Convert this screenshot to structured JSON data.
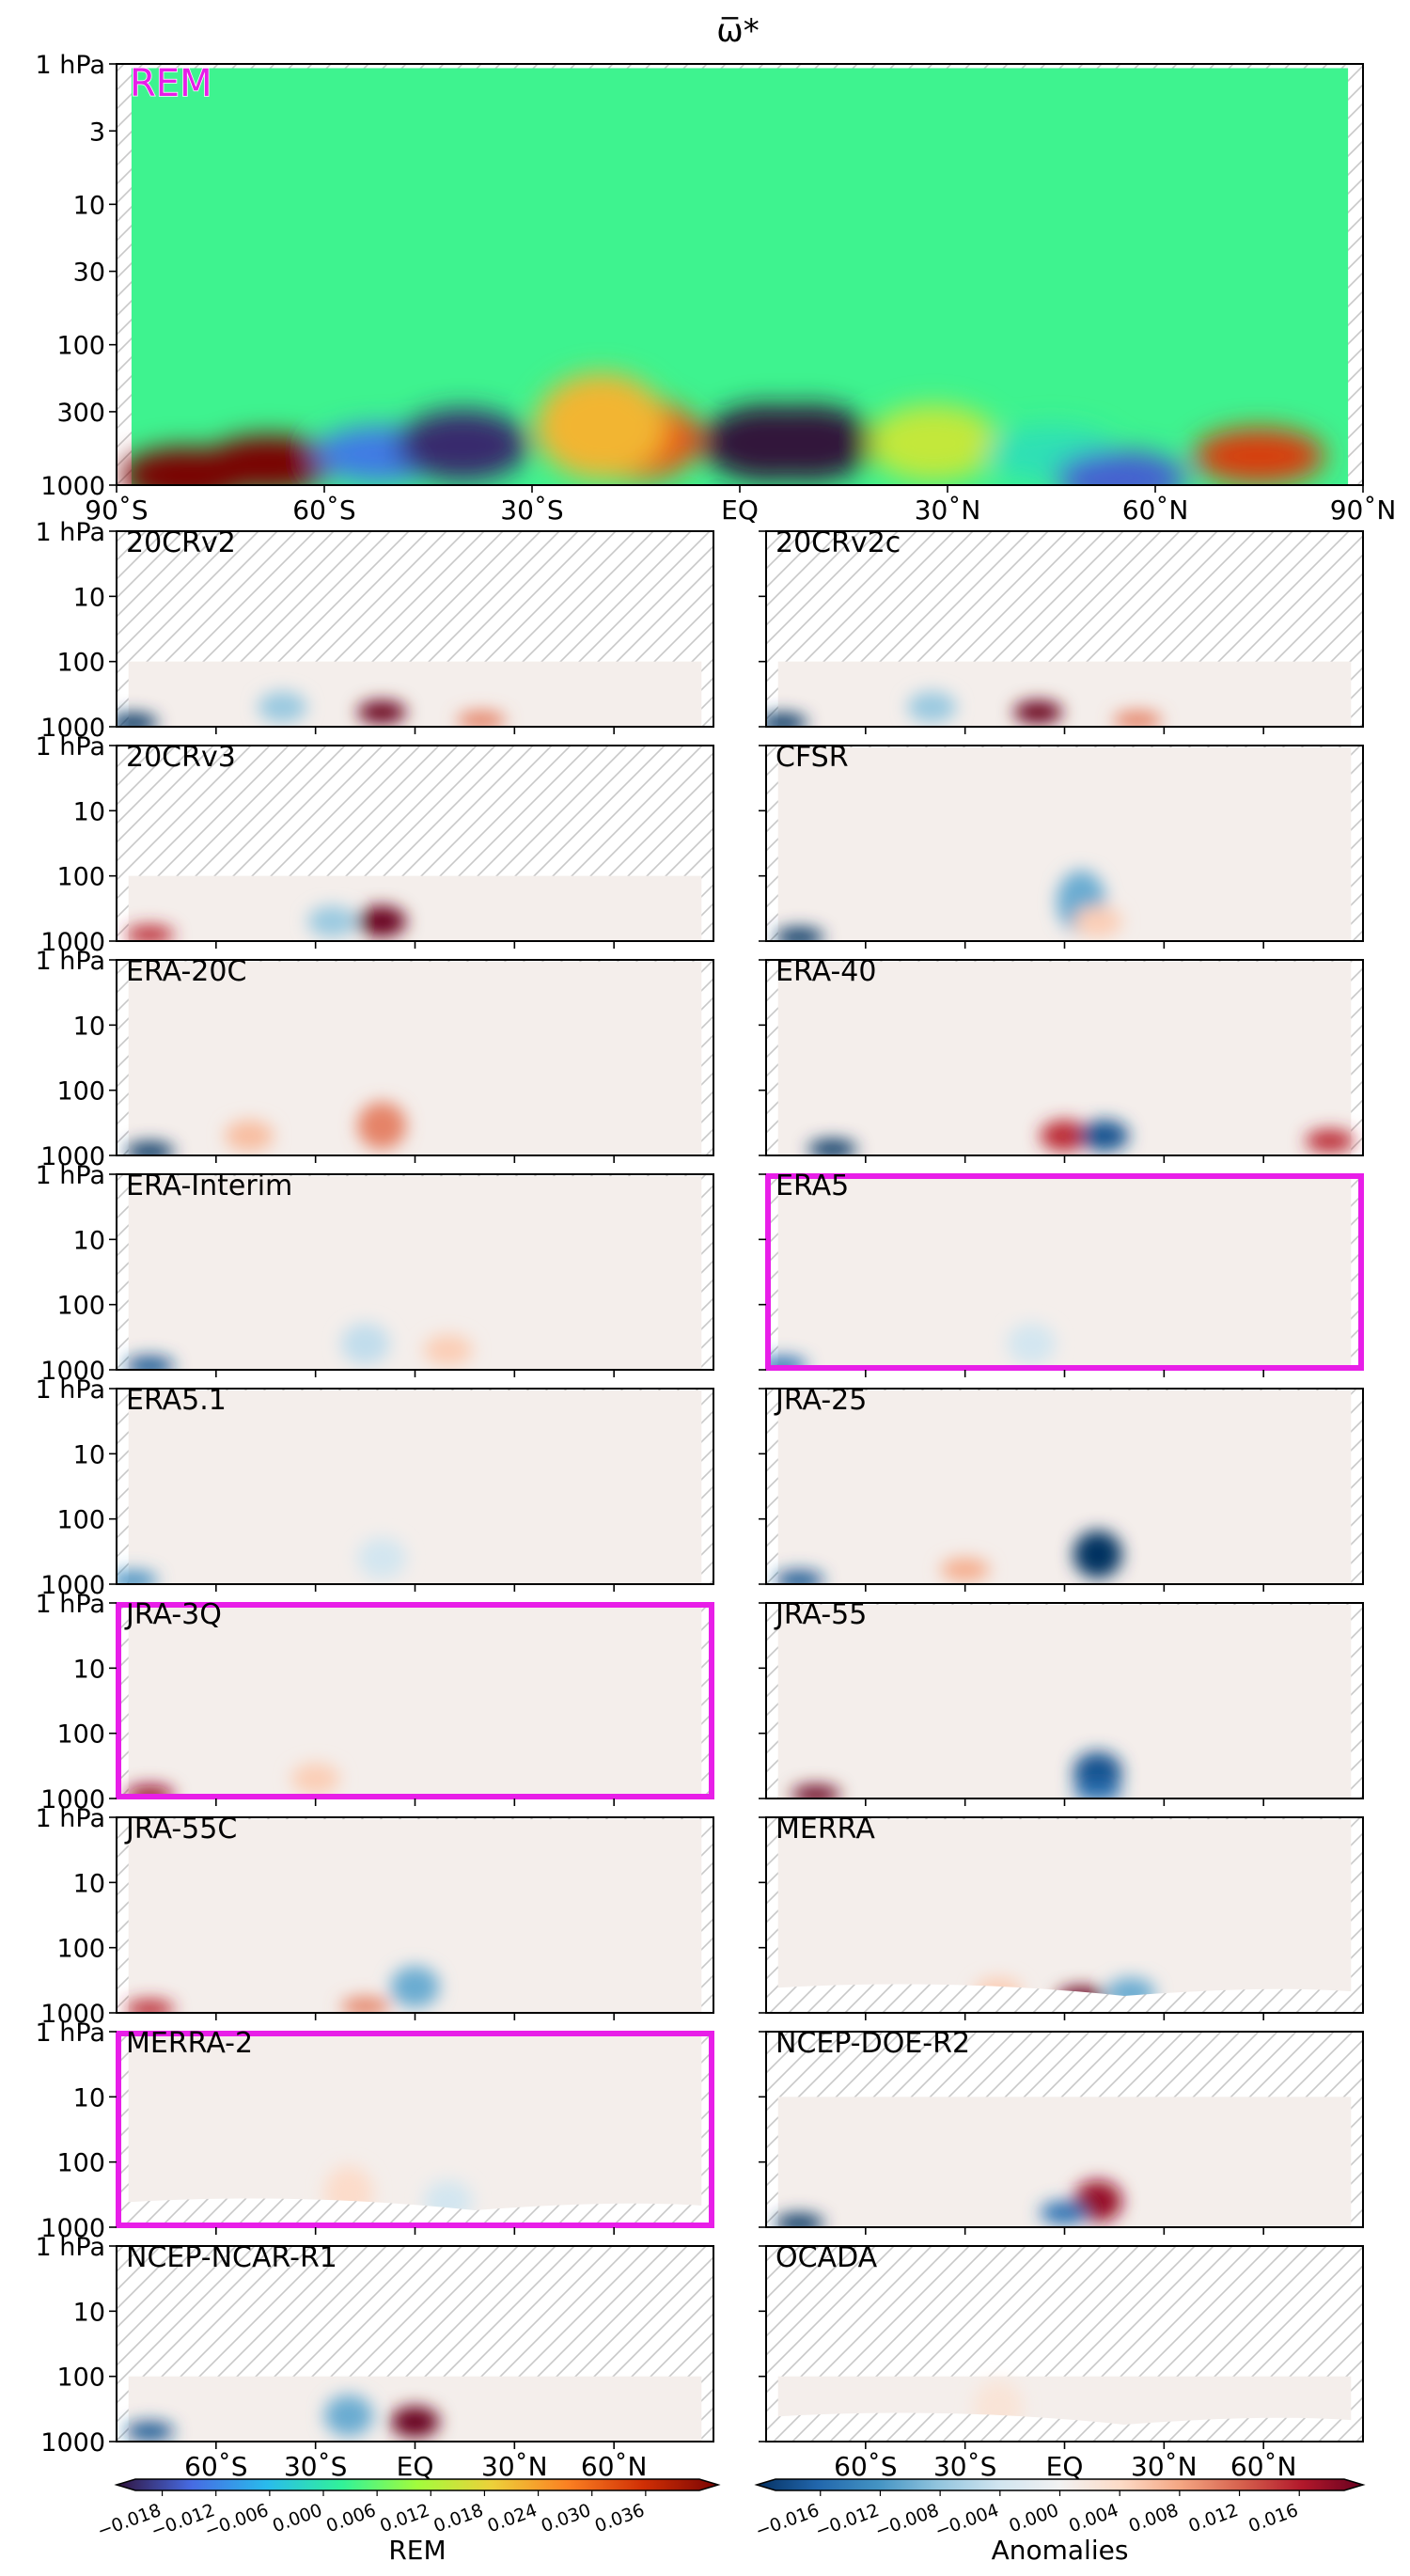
{
  "figure": {
    "title": "ω̅*"
  },
  "chart_data": [
    {
      "type": "heatmap",
      "panel": "REM",
      "label": "REM",
      "x_ticks": [
        "90˚S",
        "60˚S",
        "30˚S",
        "EQ",
        "30˚N",
        "60˚N",
        "90˚N"
      ],
      "x_values": [
        -90,
        -60,
        -30,
        0,
        30,
        60,
        90
      ],
      "y_ticks": [
        "1 hPa",
        "3",
        "10",
        "30",
        "100",
        "300",
        "1000"
      ],
      "y_values": [
        1,
        3,
        10,
        30,
        100,
        300,
        1000
      ],
      "y_scale": "log",
      "ylim": [
        1000,
        1
      ],
      "xlim": [
        -90,
        90
      ],
      "colormap": "turbo",
      "color_range": [
        -0.018,
        0.036
      ],
      "background_value": 0.003,
      "features": [
        {
          "lat": -68,
          "p": 700,
          "value": 0.04
        },
        {
          "lat": -80,
          "p": 850,
          "value": 0.04
        },
        {
          "lat": -52,
          "p": 600,
          "value": -0.01
        },
        {
          "lat": -40,
          "p": 520,
          "value": -0.016
        },
        {
          "lat": -15,
          "p": 470,
          "value": 0.026
        },
        {
          "lat": -20,
          "p": 380,
          "value": 0.018
        },
        {
          "lat": 10,
          "p": 500,
          "value": -0.02
        },
        {
          "lat": 4,
          "p": 500,
          "value": -0.02
        },
        {
          "lat": 28,
          "p": 500,
          "value": 0.012
        },
        {
          "lat": 45,
          "p": 600,
          "value": 0.0
        },
        {
          "lat": 75,
          "p": 620,
          "value": 0.028
        },
        {
          "lat": 55,
          "p": 900,
          "value": -0.012
        }
      ]
    },
    {
      "type": "heatmap_grid",
      "x_ticks": [
        "60˚S",
        "30˚S",
        "EQ",
        "30˚N",
        "60˚N"
      ],
      "x_values": [
        -60,
        -30,
        0,
        30,
        60
      ],
      "y_ticks": [
        "1 hPa",
        "10",
        "100",
        "1000"
      ],
      "y_values": [
        1,
        10,
        100,
        1000
      ],
      "y_scale": "log",
      "colormap": "RdBu_r",
      "color_range": [
        -0.016,
        0.016
      ],
      "panels": [
        {
          "label": "20CRv2",
          "highlight": false,
          "top_hatch_p": 100,
          "bottom_hatch": false,
          "features": [
            {
              "lat": -85,
              "p": 900,
              "value": -0.016
            },
            {
              "lat": -10,
              "p": 600,
              "value": 0.016
            },
            {
              "lat": -40,
              "p": 500,
              "value": -0.006
            },
            {
              "lat": 20,
              "p": 800,
              "value": 0.008
            }
          ]
        },
        {
          "label": "20CRv2c",
          "highlight": false,
          "top_hatch_p": 100,
          "bottom_hatch": false,
          "features": [
            {
              "lat": -85,
              "p": 900,
              "value": -0.016
            },
            {
              "lat": -8,
              "p": 600,
              "value": 0.016
            },
            {
              "lat": -40,
              "p": 500,
              "value": -0.006
            },
            {
              "lat": 22,
              "p": 800,
              "value": 0.008
            }
          ]
        },
        {
          "label": "20CRv3",
          "highlight": false,
          "top_hatch_p": 100,
          "bottom_hatch": false,
          "features": [
            {
              "lat": -80,
              "p": 800,
              "value": 0.012
            },
            {
              "lat": -10,
              "p": 500,
              "value": 0.016
            },
            {
              "lat": -25,
              "p": 500,
              "value": -0.006
            }
          ]
        },
        {
          "label": "CFSR",
          "highlight": false,
          "top_hatch_p": null,
          "bottom_hatch": false,
          "features": [
            {
              "lat": -80,
              "p": 900,
              "value": -0.016
            },
            {
              "lat": 5,
              "p": 250,
              "value": -0.008
            },
            {
              "lat": 10,
              "p": 500,
              "value": 0.004
            }
          ]
        },
        {
          "label": "ERA-20C",
          "highlight": false,
          "top_hatch_p": null,
          "bottom_hatch": false,
          "features": [
            {
              "lat": -80,
              "p": 900,
              "value": -0.016
            },
            {
              "lat": -10,
              "p": 350,
              "value": 0.008
            },
            {
              "lat": -50,
              "p": 500,
              "value": 0.005
            }
          ]
        },
        {
          "label": "ERA-40",
          "highlight": false,
          "top_hatch_p": null,
          "bottom_hatch": false,
          "features": [
            {
              "lat": -70,
              "p": 800,
              "value": -0.016
            },
            {
              "lat": 0,
              "p": 500,
              "value": 0.012
            },
            {
              "lat": 12,
              "p": 500,
              "value": -0.014
            },
            {
              "lat": 80,
              "p": 600,
              "value": 0.012
            }
          ]
        },
        {
          "label": "ERA-Interim",
          "highlight": false,
          "top_hatch_p": null,
          "bottom_hatch": false,
          "features": [
            {
              "lat": -80,
              "p": 900,
              "value": -0.014
            },
            {
              "lat": -15,
              "p": 400,
              "value": -0.004
            },
            {
              "lat": 10,
              "p": 500,
              "value": 0.004
            }
          ]
        },
        {
          "label": "ERA5",
          "highlight": true,
          "top_hatch_p": null,
          "bottom_hatch": false,
          "features": [
            {
              "lat": -85,
              "p": 900,
              "value": -0.012
            },
            {
              "lat": -10,
              "p": 400,
              "value": -0.003
            }
          ]
        },
        {
          "label": "ERA5.1",
          "highlight": false,
          "top_hatch_p": null,
          "bottom_hatch": false,
          "features": [
            {
              "lat": -85,
              "p": 900,
              "value": -0.01
            },
            {
              "lat": -10,
              "p": 400,
              "value": -0.003
            }
          ]
        },
        {
          "label": "JRA-25",
          "highlight": false,
          "top_hatch_p": null,
          "bottom_hatch": false,
          "features": [
            {
              "lat": -80,
              "p": 900,
              "value": -0.014
            },
            {
              "lat": 10,
              "p": 350,
              "value": -0.016
            },
            {
              "lat": -30,
              "p": 600,
              "value": 0.006
            }
          ]
        },
        {
          "label": "JRA-3Q",
          "highlight": true,
          "top_hatch_p": null,
          "bottom_hatch": false,
          "features": [
            {
              "lat": -80,
              "p": 900,
              "value": 0.014
            },
            {
              "lat": -30,
              "p": 500,
              "value": 0.004
            }
          ]
        },
        {
          "label": "JRA-55",
          "highlight": false,
          "top_hatch_p": null,
          "bottom_hatch": false,
          "features": [
            {
              "lat": -75,
              "p": 900,
              "value": 0.016
            },
            {
              "lat": 10,
              "p": 400,
              "value": -0.014
            },
            {
              "lat": 10,
              "p": 800,
              "value": -0.012
            }
          ]
        },
        {
          "label": "JRA-55C",
          "highlight": false,
          "top_hatch_p": null,
          "bottom_hatch": false,
          "features": [
            {
              "lat": -80,
              "p": 900,
              "value": 0.012
            },
            {
              "lat": 0,
              "p": 400,
              "value": -0.008
            },
            {
              "lat": -15,
              "p": 800,
              "value": 0.008
            }
          ]
        },
        {
          "label": "MERRA",
          "highlight": false,
          "top_hatch_p": null,
          "bottom_hatch": true,
          "features": [
            {
              "lat": 5,
              "p": 600,
              "value": 0.016
            },
            {
              "lat": 20,
              "p": 500,
              "value": -0.008
            },
            {
              "lat": -20,
              "p": 500,
              "value": 0.004
            }
          ]
        },
        {
          "label": "MERRA-2",
          "highlight": true,
          "top_hatch_p": null,
          "bottom_hatch": true,
          "features": [
            {
              "lat": -20,
              "p": 300,
              "value": 0.003
            },
            {
              "lat": 10,
              "p": 400,
              "value": -0.003
            }
          ]
        },
        {
          "label": "NCEP-DOE-R2",
          "highlight": false,
          "top_hatch_p": 10,
          "bottom_hatch": false,
          "features": [
            {
              "lat": -80,
              "p": 900,
              "value": -0.016
            },
            {
              "lat": 10,
              "p": 400,
              "value": 0.014
            },
            {
              "lat": 0,
              "p": 600,
              "value": -0.012
            }
          ]
        },
        {
          "label": "NCEP-NCAR-R1",
          "highlight": false,
          "top_hatch_p": 100,
          "bottom_hatch": false,
          "features": [
            {
              "lat": -80,
              "p": 700,
              "value": -0.014
            },
            {
              "lat": 0,
              "p": 500,
              "value": 0.016
            },
            {
              "lat": -20,
              "p": 400,
              "value": -0.008
            }
          ]
        },
        {
          "label": "OCADA",
          "highlight": false,
          "top_hatch_p": 100,
          "bottom_hatch": true,
          "features": [
            {
              "lat": -20,
              "p": 300,
              "value": 0.002
            }
          ]
        }
      ]
    },
    {
      "type": "colorbar",
      "label": "REM",
      "colormap": "turbo",
      "ticks": [
        "−0.018",
        "−0.012",
        "−0.006",
        "0.000",
        "0.006",
        "0.012",
        "0.018",
        "0.024",
        "0.030",
        "0.036"
      ],
      "range": [
        -0.021,
        0.042
      ]
    },
    {
      "type": "colorbar",
      "label": "Anomalies",
      "colormap": "RdBu_r",
      "ticks": [
        "−0.016",
        "−0.012",
        "−0.008",
        "−0.004",
        "0.000",
        "0.004",
        "0.008",
        "0.012",
        "0.016"
      ],
      "range": [
        -0.019,
        0.019
      ]
    }
  ],
  "colors": {
    "highlight": "#e81ee8",
    "hatch": "#c8c8c8",
    "axis": "#000000"
  }
}
